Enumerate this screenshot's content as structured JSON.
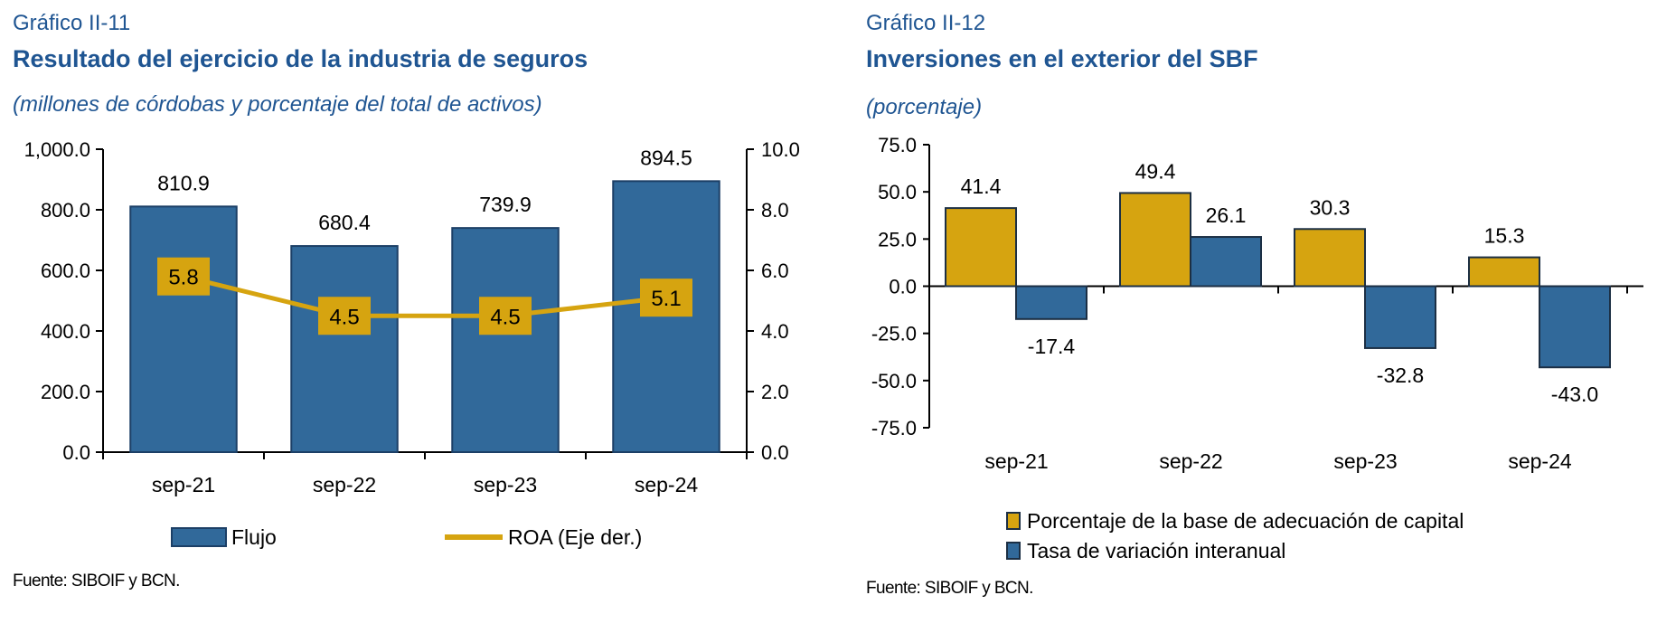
{
  "chart_data": [
    {
      "type": "bar",
      "figure_number": "Gráfico II-11",
      "title": "Resultado del ejercicio de la industria de seguros",
      "subtitle": "(millones de córdobas y porcentaje del total de activos)",
      "categories": [
        "sep-21",
        "sep-22",
        "sep-23",
        "sep-24"
      ],
      "series": [
        {
          "name": "Flujo",
          "type": "bar",
          "axis": "left",
          "values": [
            810.9,
            680.4,
            739.9,
            894.5
          ],
          "labels": [
            "810.9",
            "680.4",
            "739.9",
            "894.5"
          ],
          "color": "#31699a"
        },
        {
          "name": "ROA (Eje der.)",
          "type": "line",
          "axis": "right",
          "values": [
            5.8,
            4.5,
            4.5,
            5.1
          ],
          "labels": [
            "5.8",
            "4.5",
            "4.5",
            "5.1"
          ],
          "color": "#d6a410"
        }
      ],
      "ylim": [
        0,
        1000
      ],
      "y_ticks": [
        0,
        200,
        400,
        600,
        800,
        1000
      ],
      "y_tick_labels": [
        "0.0",
        "200.0",
        "400.0",
        "600.0",
        "800.0",
        "1,000.0"
      ],
      "y2lim": [
        0,
        10
      ],
      "y2_ticks": [
        0,
        2,
        4,
        6,
        8,
        10
      ],
      "y2_tick_labels": [
        "0.0",
        "2.0",
        "4.0",
        "6.0",
        "8.0",
        "10.0"
      ],
      "grid": false,
      "legend_position": "bottom",
      "source": "Fuente: SIBOIF y BCN."
    },
    {
      "type": "bar",
      "figure_number": "Gráfico II-12",
      "title": "Inversiones en el exterior del SBF",
      "subtitle": "(porcentaje)",
      "categories": [
        "sep-21",
        "sep-22",
        "sep-23",
        "sep-24"
      ],
      "series": [
        {
          "name": "Porcentaje de la base de adecuación de capital",
          "values": [
            41.4,
            49.4,
            30.3,
            15.3
          ],
          "labels": [
            "41.4",
            "49.4",
            "30.3",
            "15.3"
          ],
          "color": "#d6a410"
        },
        {
          "name": "Tasa de variación interanual",
          "values": [
            -17.4,
            26.1,
            -32.8,
            -43.0
          ],
          "labels": [
            "-17.4",
            "26.1",
            "-32.8",
            "-43.0"
          ],
          "color": "#31699a"
        }
      ],
      "ylim": [
        -75,
        75
      ],
      "y_ticks": [
        -75,
        -50,
        -25,
        0,
        25,
        50,
        75
      ],
      "y_tick_labels": [
        "-75.0",
        "-50.0",
        "-25.0",
        "0.0",
        "25.0",
        "50.0",
        "75.0"
      ],
      "grid": false,
      "legend_position": "bottom",
      "source": "Fuente: SIBOIF y BCN."
    }
  ]
}
